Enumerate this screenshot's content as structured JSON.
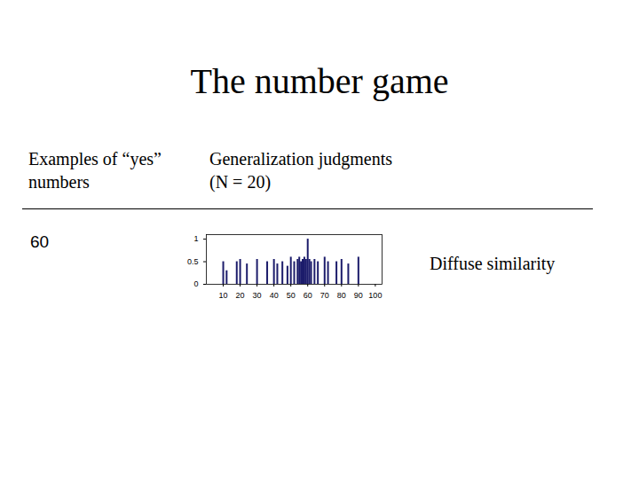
{
  "title": "The number game",
  "headers": [
    "Examples of “yes” numbers",
    "Generalization judgments (N = 20)"
  ],
  "example": "60",
  "annotation": "Diffuse similarity",
  "chart_data": {
    "type": "bar",
    "color": "#1c1c6b",
    "x": [
      10,
      12,
      18,
      20,
      24,
      30,
      36,
      40,
      42,
      45,
      48,
      50,
      52,
      54,
      55,
      56,
      57,
      58,
      59,
      60,
      61,
      62,
      64,
      66,
      70,
      72,
      77,
      80,
      84,
      90
    ],
    "values": [
      0.5,
      0.3,
      0.5,
      0.55,
      0.45,
      0.55,
      0.5,
      0.55,
      0.45,
      0.5,
      0.4,
      0.6,
      0.5,
      0.55,
      0.6,
      0.5,
      0.55,
      0.6,
      0.55,
      1.0,
      0.55,
      0.5,
      0.55,
      0.5,
      0.6,
      0.5,
      0.5,
      0.55,
      0.45,
      0.6
    ],
    "xlim": [
      0,
      104
    ],
    "ylim": [
      0,
      1.1
    ],
    "xticks": [
      10,
      20,
      30,
      40,
      50,
      60,
      70,
      80,
      90,
      100
    ],
    "yticks": [
      0,
      0.5,
      1
    ]
  }
}
